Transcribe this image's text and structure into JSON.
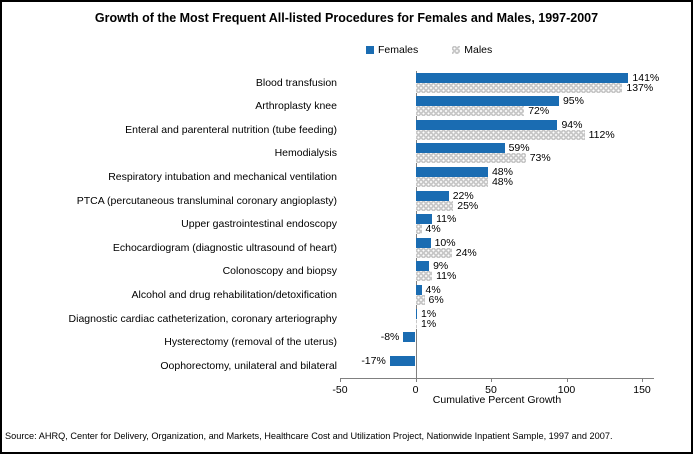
{
  "title": "Growth of the Most Frequent All-listed Procedures for Females and Males, 1997-2007",
  "legend": {
    "females_label": "Females",
    "males_label": "Males"
  },
  "colors": {
    "females_bar": "#1A6CB2",
    "males_bar": "#C8C8C8",
    "axis": "#808080"
  },
  "chart_data": {
    "type": "bar",
    "orientation": "horizontal",
    "title": "Growth of the Most Frequent All-listed Procedures for Females and Males, 1997-2007",
    "categories": [
      "Blood transfusion",
      "Arthroplasty knee",
      "Enteral and parenteral nutrition (tube feeding)",
      "Hemodialysis",
      "Respiratory intubation and mechanical ventilation",
      "PTCA (percutaneous transluminal coronary angioplasty)",
      "Upper gastrointestinal endoscopy",
      "Echocardiogram (diagnostic ultrasound of heart)",
      "Colonoscopy and biopsy",
      "Alcohol and drug rehabilitation/detoxification",
      "Diagnostic cardiac catheterization, coronary arteriography",
      "Hysterectomy (removal of the uterus)",
      "Oophorectomy, unilateral and bilateral"
    ],
    "series": [
      {
        "name": "Females",
        "color": "#1A6CB2",
        "values": [
          141,
          95,
          94,
          59,
          48,
          22,
          11,
          10,
          9,
          4,
          1,
          -8,
          -17
        ]
      },
      {
        "name": "Males",
        "color": "#C8C8C8",
        "values": [
          137,
          72,
          112,
          73,
          48,
          25,
          4,
          24,
          11,
          6,
          1,
          null,
          null
        ]
      }
    ],
    "value_suffix": "%",
    "xlabel": "Cumulative Percent Growth",
    "xticks": [
      -50,
      0,
      50,
      100,
      150
    ],
    "xlim": [
      -50,
      158
    ],
    "grid": false,
    "legend_position": "top-center"
  },
  "source": "Source:  AHRQ, Center for Delivery, Organization, and Markets, Healthcare Cost and Utilization Project, Nationwide Inpatient Sample, 1997 and 2007."
}
